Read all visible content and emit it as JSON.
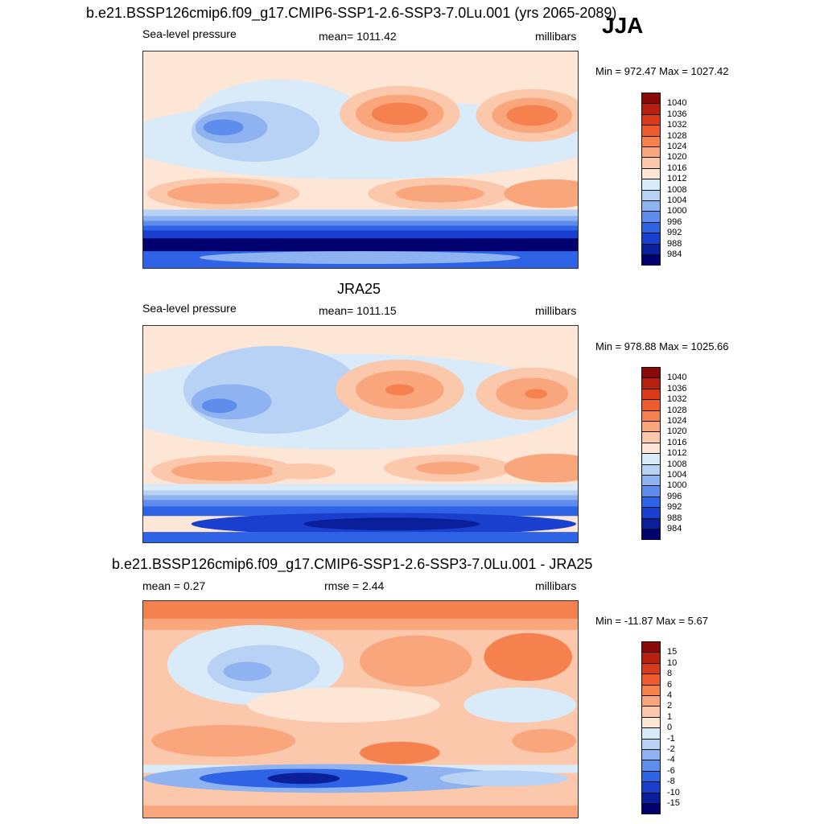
{
  "season": "JJA",
  "panels": [
    {
      "title": "b.e21.BSSP126cmip6.f09_g17.CMIP6-SSP1-2.6-SSP3-7.0Lu.001 (yrs 2065-2089)",
      "left_label": "Sea-level pressure",
      "center_label": "mean= 1011.42",
      "right_label": "millibars",
      "minmax": "Min = 972.47 Max = 1027.42",
      "colorbar_labels": [
        "1040",
        "1036",
        "1032",
        "1028",
        "1024",
        "1020",
        "1016",
        "1012",
        "1008",
        "1004",
        "1000",
        "996",
        "992",
        "988",
        "984"
      ],
      "colors": [
        "#8a0a0a",
        "#b5200f",
        "#d83a1a",
        "#ef5b2c",
        "#f5814f",
        "#f9a67d",
        "#fcc8ab",
        "#fee6d6",
        "#d9eaf9",
        "#b7d2f5",
        "#8fb2f0",
        "#5e8ded",
        "#2f63e6",
        "#1a3fcf",
        "#0a1f99",
        "#00006e"
      ]
    },
    {
      "title": "JRA25",
      "left_label": "Sea-level pressure",
      "center_label": "mean= 1011.15",
      "right_label": "millibars",
      "minmax": "Min = 978.88 Max = 1025.66",
      "colorbar_labels": [
        "1040",
        "1036",
        "1032",
        "1028",
        "1024",
        "1020",
        "1016",
        "1012",
        "1008",
        "1004",
        "1000",
        "996",
        "992",
        "988",
        "984"
      ],
      "colors": [
        "#8a0a0a",
        "#b5200f",
        "#d83a1a",
        "#ef5b2c",
        "#f5814f",
        "#f9a67d",
        "#fcc8ab",
        "#fee6d6",
        "#d9eaf9",
        "#b7d2f5",
        "#8fb2f0",
        "#5e8ded",
        "#2f63e6",
        "#1a3fcf",
        "#0a1f99",
        "#00006e"
      ]
    },
    {
      "title": "b.e21.BSSP126cmip6.f09_g17.CMIP6-SSP1-2.6-SSP3-7.0Lu.001 - JRA25",
      "left_label": "mean =   0.27",
      "center_label": "rmse =   2.44",
      "right_label": "millibars",
      "minmax": "Min = -11.87 Max =   5.67",
      "colorbar_labels": [
        "15",
        "10",
        "8",
        "6",
        "4",
        "2",
        "1",
        "0",
        "-1",
        "-2",
        "-4",
        "-6",
        "-8",
        "-10",
        "-15"
      ],
      "colors": [
        "#8a0a0a",
        "#b5200f",
        "#d83a1a",
        "#ef5b2c",
        "#f5814f",
        "#f9a67d",
        "#fcc8ab",
        "#fee6d6",
        "#d9eaf9",
        "#b7d2f5",
        "#8fb2f0",
        "#5e8ded",
        "#2f63e6",
        "#1a3fcf",
        "#0a1f99",
        "#00006e"
      ]
    }
  ]
}
